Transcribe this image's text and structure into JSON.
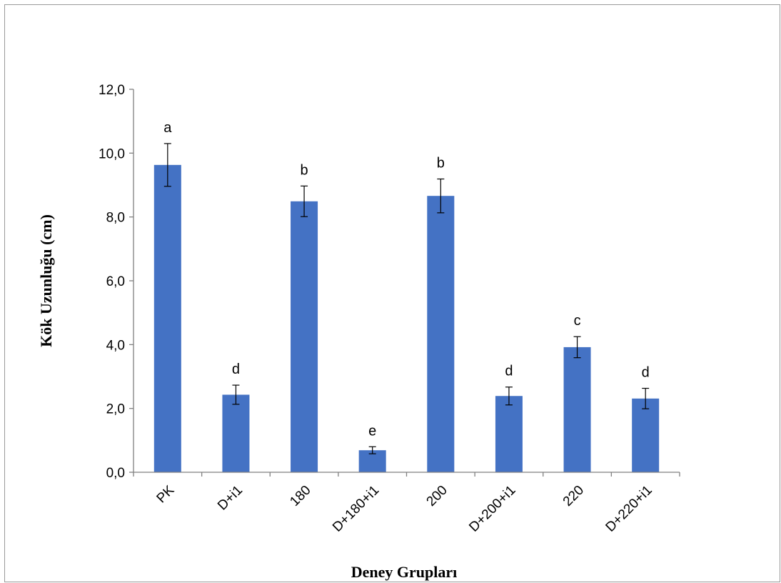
{
  "chart_data": {
    "type": "bar",
    "title": "",
    "xlabel": "Deney Grupları",
    "ylabel": "Kök Uzunluğu (cm)",
    "ylim": [
      0,
      12
    ],
    "yticks": [
      "0,0",
      "2,0",
      "4,0",
      "6,0",
      "8,0",
      "10,0",
      "12,0"
    ],
    "categories": [
      "PK",
      "D+i1",
      "180",
      "D+180+i1",
      "200",
      "D+200+i1",
      "220",
      "D+220+i1"
    ],
    "values": [
      9.63,
      2.43,
      8.49,
      0.69,
      8.66,
      2.39,
      3.92,
      2.31
    ],
    "errors": [
      0.67,
      0.3,
      0.48,
      0.11,
      0.53,
      0.28,
      0.33,
      0.32
    ],
    "significance": [
      "a",
      "d",
      "b",
      "e",
      "b",
      "d",
      "c",
      "d"
    ],
    "bar_color": "#4472c4",
    "grid": false,
    "legend": "none"
  }
}
